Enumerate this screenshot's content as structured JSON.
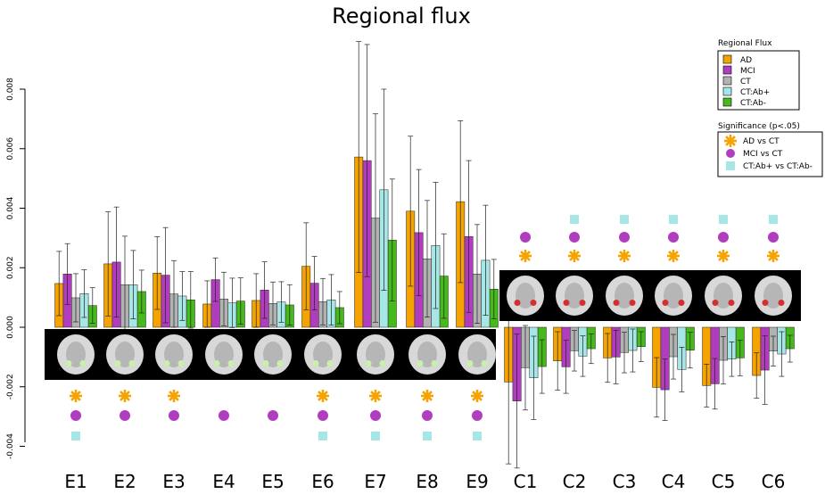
{
  "chart_data": {
    "type": "bar",
    "title": "Regional flux",
    "categories": [
      "E1",
      "E2",
      "E3",
      "E4",
      "E5",
      "E6",
      "E7",
      "E8",
      "E9",
      "C1",
      "C2",
      "C3",
      "C4",
      "C5",
      "C6"
    ],
    "ylim": [
      -0.004,
      0.008
    ],
    "y_ticks": [
      "0.008",
      "0.006",
      "0.004",
      "0.002",
      "0.000",
      "-0.002",
      "-0.004"
    ],
    "y_tick_values": [
      0.008,
      0.006,
      0.004,
      0.002,
      0.0,
      -0.002,
      -0.004
    ],
    "xlabel": "",
    "ylabel": "",
    "grid": false,
    "series": [
      {
        "name": "AD",
        "color": "#f5a300",
        "values": [
          0.00147,
          0.00213,
          0.00182,
          0.00078,
          0.0009,
          0.00205,
          0.00572,
          0.0039,
          0.00422,
          -0.00184,
          -0.00113,
          -0.00103,
          -0.00202,
          -0.00196,
          -0.00162
        ],
        "errors": [
          0.00108,
          0.00175,
          0.00122,
          0.00078,
          0.0009,
          0.00146,
          0.00388,
          0.00252,
          0.00272,
          0.00275,
          0.00098,
          0.00082,
          0.001,
          0.00072,
          0.00076
        ]
      },
      {
        "name": "MCI",
        "color": "#b03dbe",
        "values": [
          0.00179,
          0.00219,
          0.00175,
          0.0016,
          0.00125,
          0.00148,
          0.0056,
          0.00318,
          0.00305,
          -0.00248,
          -0.00133,
          -0.001,
          -0.0021,
          -0.0019,
          -0.00144
        ],
        "errors": [
          0.00102,
          0.00185,
          0.0016,
          0.00073,
          0.00095,
          0.0009,
          0.0039,
          0.00212,
          0.00255,
          0.00225,
          0.00089,
          0.0009,
          0.00103,
          0.00085,
          0.00115
        ]
      },
      {
        "name": "CT",
        "color": "#b2b2b2",
        "values": [
          0.00099,
          0.00143,
          0.00112,
          0.00095,
          0.0008,
          0.00086,
          0.00367,
          0.0023,
          0.00179,
          -0.00136,
          -0.00079,
          -0.00085,
          -0.00099,
          -0.00111,
          -0.0008
        ],
        "errors": [
          0.00081,
          0.00163,
          0.00112,
          0.0009,
          0.00072,
          0.00078,
          0.0035,
          0.00196,
          0.00166,
          0.00142,
          0.00068,
          0.00068,
          0.00075,
          0.0008,
          0.0005
        ]
      },
      {
        "name": "CT:Ab+",
        "color": "#a6e6e6",
        "values": [
          0.00113,
          0.00143,
          0.00105,
          0.00082,
          0.00085,
          0.00092,
          0.00462,
          0.00275,
          0.00225,
          -0.0017,
          -0.00097,
          -0.00078,
          -0.00142,
          -0.00107,
          -0.0009
        ],
        "errors": [
          0.0008,
          0.00115,
          0.00082,
          0.00083,
          0.00068,
          0.00085,
          0.00338,
          0.00212,
          0.00185,
          0.0014,
          0.00068,
          0.00072,
          0.00075,
          0.00058,
          0.00075
        ]
      },
      {
        "name": "CT:Ab-",
        "color": "#46b91b",
        "values": [
          0.00073,
          0.0012,
          0.00092,
          0.00088,
          0.00075,
          0.00066,
          0.00293,
          0.00172,
          0.00128,
          -0.00132,
          -0.00072,
          -0.00065,
          -0.00077,
          -0.00103,
          -0.00072
        ],
        "errors": [
          0.0006,
          0.00072,
          0.00095,
          0.00078,
          0.00068,
          0.00054,
          0.00205,
          0.00142,
          0.001,
          0.0009,
          0.0005,
          0.0005,
          0.0006,
          0.0006,
          0.00045
        ]
      }
    ],
    "legend_placement": "top-right",
    "legend_title": "Regional Flux",
    "significance_legend": {
      "title": "Significance  (p<.05)",
      "entries": [
        {
          "label": "AD vs CT",
          "marker": "asterisk",
          "color": "#f5a300"
        },
        {
          "label": "MCI vs CT",
          "marker": "circle",
          "color": "#b03dbe"
        },
        {
          "label": "CT:Ab+ vs CT:Ab-",
          "marker": "square",
          "color": "#a6e6e6"
        }
      ]
    },
    "significance_markers": {
      "AD vs CT": [
        "E1",
        "E2",
        "E3",
        "E6",
        "E7",
        "E8",
        "E9",
        "C1",
        "C2",
        "C3",
        "C4",
        "C5",
        "C6"
      ],
      "MCI vs CT": [
        "E1",
        "E2",
        "E3",
        "E4",
        "E5",
        "E6",
        "E7",
        "E8",
        "E9",
        "C1",
        "C2",
        "C3",
        "C4",
        "C5",
        "C6"
      ],
      "CT:Ab+ vs CT:Ab-": [
        "E1",
        "E6",
        "E7",
        "E8",
        "E9",
        "C2",
        "C3",
        "C4",
        "C5",
        "C6"
      ]
    }
  }
}
